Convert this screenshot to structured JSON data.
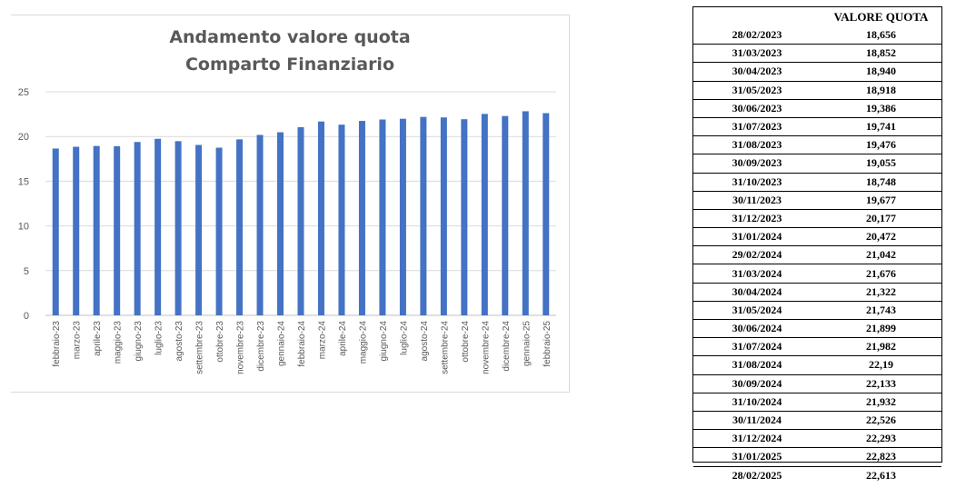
{
  "chart_data": {
    "type": "bar",
    "title_lines": [
      "Andamento valore quota",
      "Comparto Finanziario"
    ],
    "categories": [
      "febbraio-23",
      "marzo-23",
      "aprile-23",
      "maggio-23",
      "giugno-23",
      "luglio-23",
      "agosto-23",
      "settembre-23",
      "ottobre-23",
      "novembre-23",
      "dicembre-23",
      "gennaio-24",
      "febbraio-24",
      "marzo-24",
      "aprile-24",
      "maggio-24",
      "giugno-24",
      "luglio-24",
      "agosto-24",
      "settembre-24",
      "ottobre-24",
      "novembre-24",
      "dicembre-24",
      "gennaio-25",
      "febbraio-25"
    ],
    "values": [
      18.656,
      18.852,
      18.94,
      18.918,
      19.386,
      19.741,
      19.476,
      19.055,
      18.748,
      19.677,
      20.177,
      20.472,
      21.042,
      21.676,
      21.322,
      21.743,
      21.899,
      21.982,
      22.19,
      22.133,
      21.932,
      22.526,
      22.293,
      22.823,
      22.613
    ],
    "ylim": [
      0,
      25
    ],
    "yticks": [
      "0",
      "5",
      "10",
      "15",
      "20",
      "25"
    ],
    "grid": true,
    "bar_color": "#4472c4"
  },
  "table": {
    "header_date": "",
    "header_value": "VALORE QUOTA",
    "rows": [
      {
        "date": "28/02/2023",
        "value": "18,656"
      },
      {
        "date": "31/03/2023",
        "value": "18,852"
      },
      {
        "date": "30/04/2023",
        "value": "18,940"
      },
      {
        "date": "31/05/2023",
        "value": "18,918"
      },
      {
        "date": "30/06/2023",
        "value": "19,386"
      },
      {
        "date": "31/07/2023",
        "value": "19,741"
      },
      {
        "date": "31/08/2023",
        "value": "19,476"
      },
      {
        "date": "30/09/2023",
        "value": "19,055"
      },
      {
        "date": "31/10/2023",
        "value": "18,748"
      },
      {
        "date": "30/11/2023",
        "value": "19,677"
      },
      {
        "date": "31/12/2023",
        "value": "20,177"
      },
      {
        "date": "31/01/2024",
        "value": "20,472"
      },
      {
        "date": "29/02/2024",
        "value": "21,042"
      },
      {
        "date": "31/03/2024",
        "value": "21,676"
      },
      {
        "date": "30/04/2024",
        "value": "21,322"
      },
      {
        "date": "31/05/2024",
        "value": "21,743"
      },
      {
        "date": "30/06/2024",
        "value": "21,899"
      },
      {
        "date": "31/07/2024",
        "value": "21,982"
      },
      {
        "date": "31/08/2024",
        "value": "22,19"
      },
      {
        "date": "30/09/2024",
        "value": "22,133"
      },
      {
        "date": "31/10/2024",
        "value": "21,932"
      },
      {
        "date": "30/11/2024",
        "value": "22,526"
      },
      {
        "date": "31/12/2024",
        "value": "22,293"
      },
      {
        "date": "31/01/2025",
        "value": "22,823"
      },
      {
        "date": "28/02/2025",
        "value": "22,613"
      }
    ]
  }
}
